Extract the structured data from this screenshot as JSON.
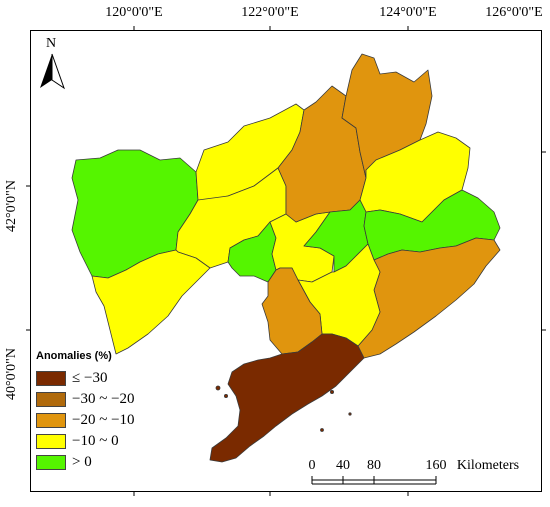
{
  "longitude_labels": [
    "120°0'0\"E",
    "122°0'0\"E",
    "124°0'0\"E",
    "126°0'0\"E"
  ],
  "latitude_labels": [
    "42°0'0\"N",
    "40°0'0\"N"
  ],
  "north_arrow": {
    "letter": "N",
    "icon": "north-arrow-icon"
  },
  "legend": {
    "title": "Anomalies (%)",
    "items": [
      {
        "label": "≤ −30",
        "color": "#7a2a00"
      },
      {
        "label": "−30 ~ −20",
        "color": "#b06a0c"
      },
      {
        "label": "−20 ~ −10",
        "color": "#e0950e"
      },
      {
        "label": "−10 ~ 0",
        "color": "#ffff00"
      },
      {
        "label": "> 0",
        "color": "#55f500"
      }
    ]
  },
  "scale_bar": {
    "ticks": [
      "0",
      "40",
      "80",
      "160"
    ],
    "units": "Kilometers"
  },
  "regions": [
    {
      "name": "west-green",
      "class": "> 0"
    },
    {
      "name": "north-yellow-1",
      "class": "−10 ~ 0"
    },
    {
      "name": "north-yellow-2",
      "class": "−10 ~ 0"
    },
    {
      "name": "southwest-yellow",
      "class": "−10 ~ 0"
    },
    {
      "name": "center-green",
      "class": "> 0"
    },
    {
      "name": "center-yellow",
      "class": "−10 ~ 0"
    },
    {
      "name": "north-orange-1",
      "class": "−20 ~ −10"
    },
    {
      "name": "north-orange-2",
      "class": "−20 ~ −10"
    },
    {
      "name": "east-yellow",
      "class": "−10 ~ 0"
    },
    {
      "name": "east-green-1",
      "class": "> 0"
    },
    {
      "name": "east-green-2",
      "class": "> 0"
    },
    {
      "name": "southeast-orange",
      "class": "−20 ~ −10"
    },
    {
      "name": "south-yellow",
      "class": "−10 ~ 0"
    },
    {
      "name": "south-orange",
      "class": "−20 ~ −10"
    },
    {
      "name": "peninsula-brown",
      "class": "≤ −30"
    }
  ]
}
